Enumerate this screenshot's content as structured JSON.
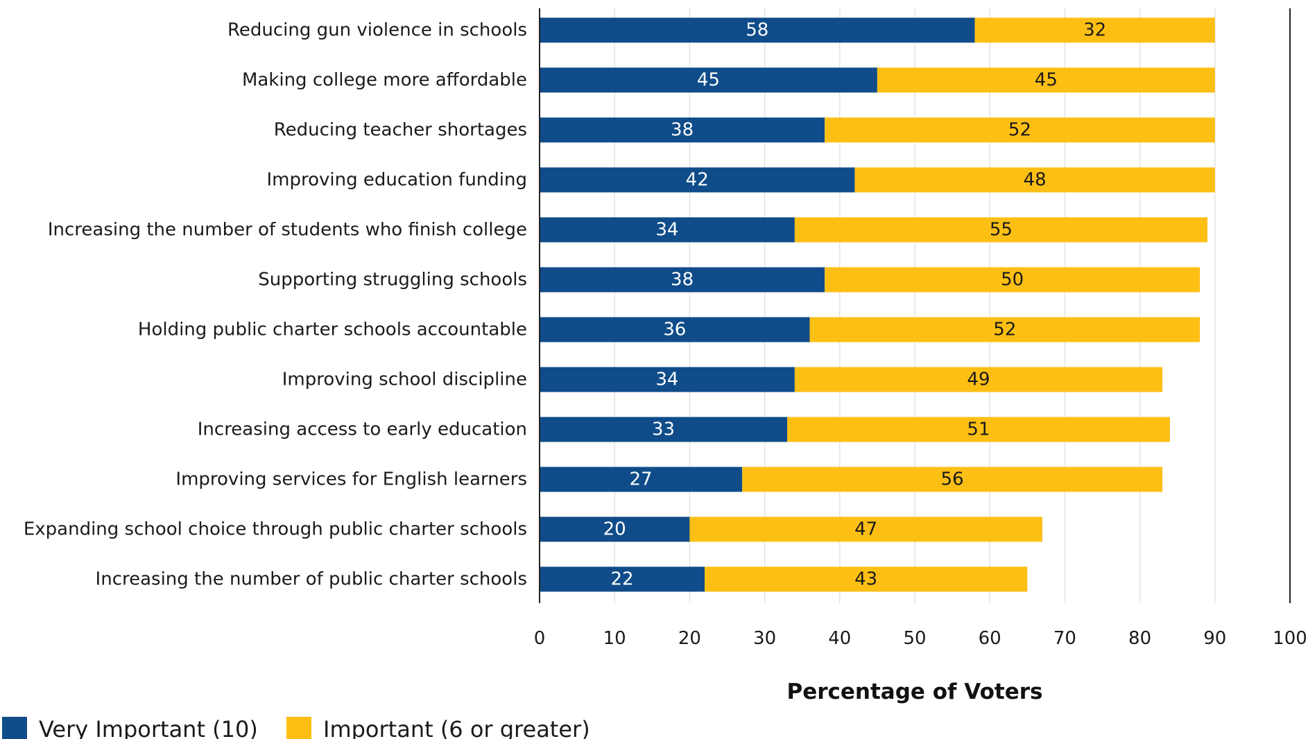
{
  "chart_data": {
    "type": "bar",
    "orientation": "horizontal",
    "stacked": true,
    "categories": [
      "Reducing gun violence in schools",
      "Making college more affordable",
      "Reducing teacher shortages",
      "Improving education funding",
      "Increasing the number of students who finish college",
      "Supporting struggling schools",
      "Holding public charter schools accountable",
      "Improving school discipline",
      "Increasing access to early education",
      "Improving services for English learners",
      "Expanding school choice through public charter schools",
      "Increasing the number of public charter schools"
    ],
    "series": [
      {
        "name": "Very Important (10)",
        "color": "#0f4c89",
        "label_color": "#ffffff",
        "values": [
          58,
          45,
          38,
          42,
          34,
          38,
          36,
          34,
          33,
          27,
          20,
          22
        ]
      },
      {
        "name": "Important (6 or greater)",
        "color": "#fdbf14",
        "label_color": "#1a1a1a",
        "values": [
          32,
          45,
          52,
          48,
          55,
          50,
          52,
          49,
          51,
          56,
          47,
          43
        ]
      }
    ],
    "xlabel": "Percentage of Voters",
    "xlim": [
      0,
      100
    ],
    "xticks": [
      0,
      10,
      20,
      30,
      40,
      50,
      60,
      70,
      80,
      90,
      100
    ],
    "grid": "vertical",
    "legend_position": "bottom-left"
  }
}
